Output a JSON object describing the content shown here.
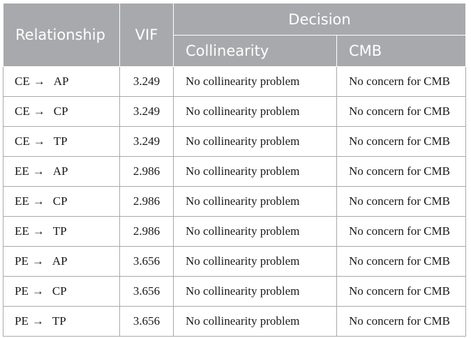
{
  "header": {
    "relationship": "Relationship",
    "vif": "VIF",
    "decision": "Decision",
    "collinearity": "Collinearity",
    "cmb": "CMB"
  },
  "rows": [
    {
      "from": "CE",
      "arrow": "→",
      "to": "AP",
      "vif": "3.249",
      "collinearity": "No collinearity problem",
      "cmb": "No concern for CMB"
    },
    {
      "from": "CE",
      "arrow": "→",
      "to": "CP",
      "vif": "3.249",
      "collinearity": "No collinearity problem",
      "cmb": "No concern for CMB"
    },
    {
      "from": "CE",
      "arrow": "→",
      "to": "TP",
      "vif": "3.249",
      "collinearity": "No collinearity problem",
      "cmb": "No concern for CMB"
    },
    {
      "from": "EE",
      "arrow": "→",
      "to": "AP",
      "vif": "2.986",
      "collinearity": "No collinearity problem",
      "cmb": "No concern for CMB"
    },
    {
      "from": "EE",
      "arrow": "→",
      "to": "CP",
      "vif": "2.986",
      "collinearity": "No collinearity problem",
      "cmb": "No concern for CMB"
    },
    {
      "from": "EE",
      "arrow": "→",
      "to": "TP",
      "vif": "2.986",
      "collinearity": "No collinearity problem",
      "cmb": "No concern for CMB"
    },
    {
      "from": "PE",
      "arrow": "→",
      "to": "AP",
      "vif": "3.656",
      "collinearity": "No collinearity problem",
      "cmb": "No concern for CMB"
    },
    {
      "from": "PE",
      "arrow": "→",
      "to": "CP",
      "vif": "3.656",
      "collinearity": "No collinearity problem",
      "cmb": "No concern for CMB"
    },
    {
      "from": "PE",
      "arrow": "→",
      "to": "TP",
      "vif": "3.656",
      "collinearity": "No collinearity problem",
      "cmb": "No concern for CMB"
    }
  ]
}
